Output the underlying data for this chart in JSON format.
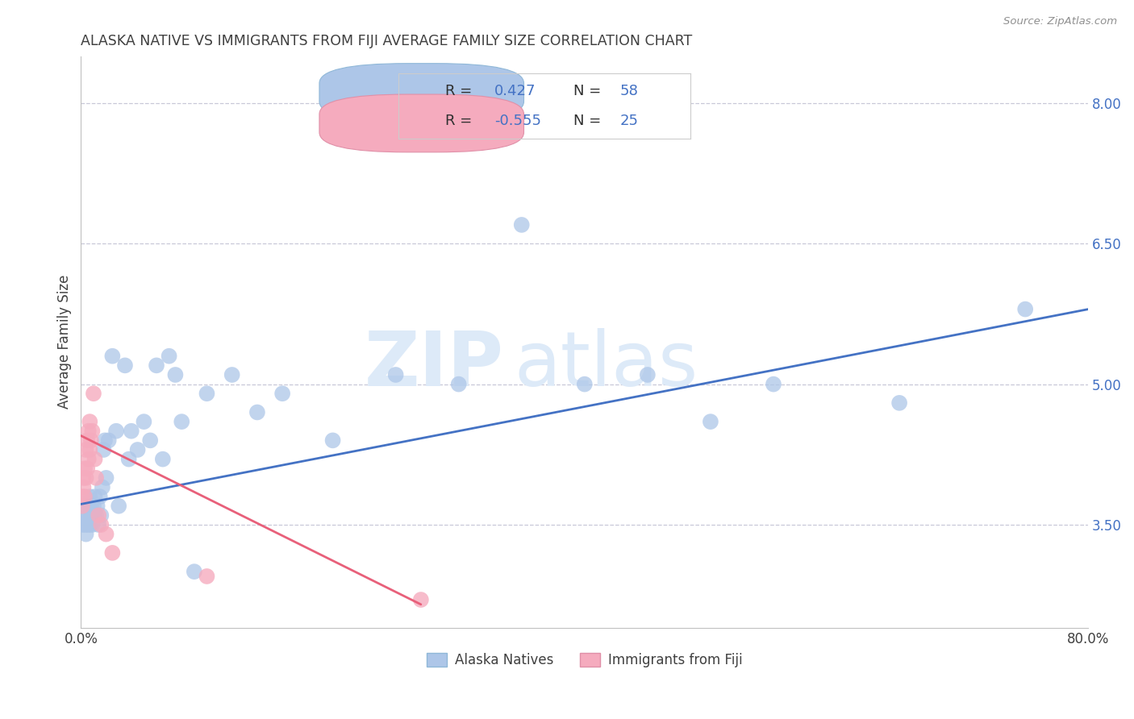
{
  "title": "ALASKA NATIVE VS IMMIGRANTS FROM FIJI AVERAGE FAMILY SIZE CORRELATION CHART",
  "source": "Source: ZipAtlas.com",
  "ylabel": "Average Family Size",
  "blue_label": "Alaska Natives",
  "pink_label": "Immigrants from Fiji",
  "blue_R": 0.427,
  "blue_N": 58,
  "pink_R": -0.555,
  "pink_N": 25,
  "blue_color": "#adc6e8",
  "pink_color": "#f5abbe",
  "blue_line_color": "#4472c4",
  "pink_line_color": "#e8607a",
  "background_color": "#ffffff",
  "grid_color": "#c8c8d8",
  "title_color": "#404040",
  "source_color": "#909090",
  "right_ytick_color": "#4472c4",
  "right_yticks": [
    3.5,
    5.0,
    6.5,
    8.0
  ],
  "xlim": [
    0.0,
    0.8
  ],
  "ylim": [
    2.4,
    8.5
  ],
  "blue_x": [
    0.001,
    0.001,
    0.002,
    0.003,
    0.003,
    0.004,
    0.004,
    0.005,
    0.005,
    0.006,
    0.006,
    0.007,
    0.007,
    0.008,
    0.008,
    0.009,
    0.01,
    0.01,
    0.011,
    0.012,
    0.013,
    0.014,
    0.015,
    0.016,
    0.017,
    0.018,
    0.019,
    0.02,
    0.022,
    0.025,
    0.028,
    0.03,
    0.035,
    0.038,
    0.04,
    0.045,
    0.05,
    0.055,
    0.06,
    0.065,
    0.07,
    0.075,
    0.08,
    0.09,
    0.1,
    0.12,
    0.14,
    0.16,
    0.2,
    0.25,
    0.3,
    0.35,
    0.4,
    0.45,
    0.5,
    0.55,
    0.65,
    0.75
  ],
  "blue_y": [
    3.6,
    3.5,
    3.7,
    3.5,
    3.6,
    3.4,
    3.7,
    3.6,
    3.5,
    3.7,
    3.6,
    3.8,
    3.5,
    3.7,
    3.6,
    3.5,
    3.7,
    3.6,
    3.8,
    3.6,
    3.7,
    3.5,
    3.8,
    3.6,
    3.9,
    4.3,
    4.4,
    4.0,
    4.4,
    5.3,
    4.5,
    3.7,
    5.2,
    4.2,
    4.5,
    4.3,
    4.6,
    4.4,
    5.2,
    4.2,
    5.3,
    5.1,
    4.6,
    3.0,
    4.9,
    5.1,
    4.7,
    4.9,
    4.4,
    5.1,
    5.0,
    6.7,
    5.0,
    5.1,
    4.6,
    5.0,
    4.8,
    5.8
  ],
  "pink_x": [
    0.001,
    0.001,
    0.002,
    0.002,
    0.003,
    0.003,
    0.004,
    0.004,
    0.005,
    0.005,
    0.006,
    0.006,
    0.007,
    0.007,
    0.008,
    0.009,
    0.01,
    0.011,
    0.012,
    0.014,
    0.016,
    0.02,
    0.025,
    0.1,
    0.27
  ],
  "pink_y": [
    3.7,
    3.8,
    3.9,
    4.0,
    3.8,
    4.1,
    4.0,
    4.3,
    4.1,
    4.4,
    4.2,
    4.5,
    4.3,
    4.6,
    4.4,
    4.5,
    4.9,
    4.2,
    4.0,
    3.6,
    3.5,
    3.4,
    3.2,
    2.95,
    2.7
  ],
  "blue_trendline_x0": 0.0,
  "blue_trendline_x1": 0.8,
  "blue_trendline_y0": 3.72,
  "blue_trendline_y1": 5.8,
  "pink_trendline_x0": 0.0,
  "pink_trendline_x1": 0.27,
  "pink_trendline_y0": 4.45,
  "pink_trendline_y1": 2.65
}
